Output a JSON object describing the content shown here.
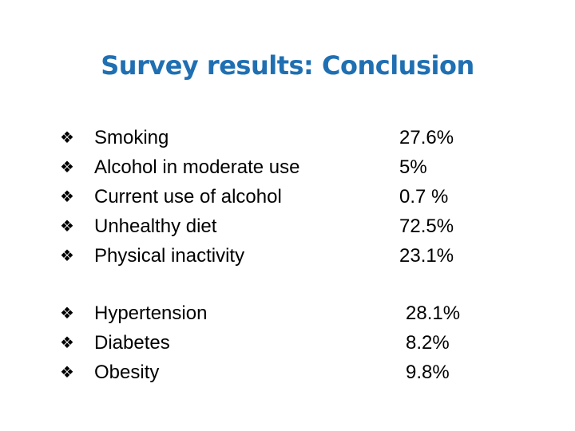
{
  "slide": {
    "title": "Survey results: Conclusion",
    "bullet_icon": "diamond-of-four-petals",
    "title_color": "#1f6fb2"
  },
  "risk_factors": [
    {
      "label": "Smoking",
      "value": "27.6%"
    },
    {
      "label": "Alcohol in moderate use",
      "value": "5%"
    },
    {
      "label": "Current use of alcohol",
      "value": "0.7 %"
    },
    {
      "label": "Unhealthy diet",
      "value": "72.5%"
    },
    {
      "label": "Physical inactivity",
      "value": "23.1%"
    }
  ],
  "conditions": [
    {
      "label": "Hypertension",
      "value": "28.1%"
    },
    {
      "label": "Diabetes",
      "value": "8.2%"
    },
    {
      "label": "Obesity",
      "value": "9.8%"
    }
  ]
}
